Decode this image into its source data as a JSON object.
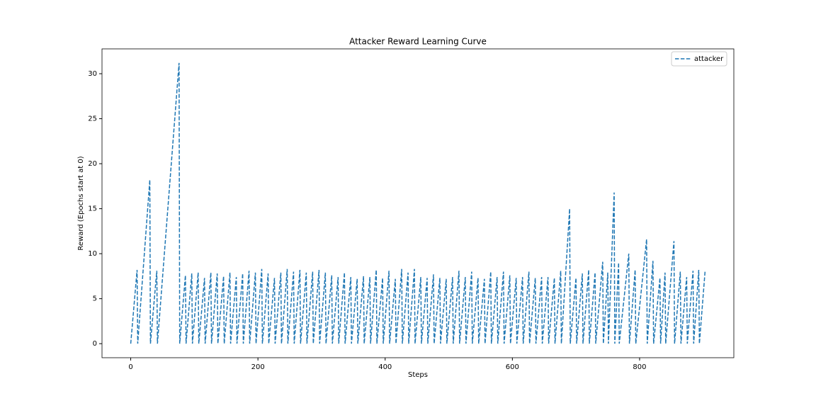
{
  "chart_data": {
    "type": "line",
    "title": "Attacker Reward Learning Curve",
    "xlabel": "Steps",
    "ylabel": "Reward (Epochs start at 0)",
    "xlim": [
      -45.15,
      948.15
    ],
    "xticks": [
      0,
      200,
      400,
      600,
      800
    ],
    "ylim": [
      -1.56,
      32.76
    ],
    "yticks": [
      0,
      5,
      10,
      15,
      20,
      25,
      30
    ],
    "legend": "upper right",
    "grid": false,
    "series": [
      {
        "name": "attacker",
        "color": "#1f77b4",
        "dashed": true,
        "x": [
          0,
          10,
          11,
          30,
          31,
          41,
          42,
          76,
          77,
          86,
          87,
          96,
          97,
          106,
          107,
          116,
          117,
          126,
          127,
          136,
          137,
          146,
          147,
          156,
          157,
          166,
          167,
          176,
          177,
          186,
          187,
          196,
          197,
          206,
          207,
          216,
          217,
          226,
          227,
          236,
          237,
          246,
          247,
          256,
          257,
          266,
          267,
          276,
          277,
          286,
          287,
          296,
          297,
          306,
          307,
          316,
          317,
          326,
          327,
          336,
          337,
          346,
          347,
          356,
          357,
          366,
          367,
          376,
          377,
          386,
          387,
          396,
          397,
          406,
          407,
          416,
          417,
          426,
          427,
          436,
          437,
          446,
          447,
          456,
          457,
          466,
          467,
          476,
          477,
          486,
          487,
          496,
          497,
          506,
          507,
          516,
          517,
          526,
          527,
          536,
          537,
          546,
          547,
          556,
          557,
          566,
          567,
          576,
          577,
          586,
          587,
          596,
          597,
          606,
          607,
          616,
          617,
          626,
          627,
          636,
          637,
          646,
          647,
          656,
          657,
          666,
          667,
          676,
          677,
          690,
          691,
          700,
          701,
          710,
          711,
          720,
          721,
          730,
          731,
          742,
          743,
          750,
          751,
          760,
          761,
          767,
          768,
          783,
          784,
          793,
          794,
          811,
          812,
          821,
          822,
          832,
          833,
          840,
          841,
          854,
          855,
          864,
          865,
          874,
          875,
          884,
          885,
          893,
          894,
          903
        ],
        "values": [
          0,
          8.2,
          0,
          18.2,
          0,
          8.1,
          0,
          31.2,
          0,
          7.6,
          0,
          7.8,
          0,
          7.9,
          0,
          7.3,
          0,
          7.9,
          0,
          7.8,
          0,
          7.5,
          0,
          7.9,
          0,
          7.4,
          0,
          7.8,
          0,
          8.1,
          0,
          7.9,
          0,
          8.3,
          0,
          7.8,
          0,
          7.3,
          0,
          7.9,
          0,
          8.3,
          0,
          8.0,
          0,
          8.2,
          0,
          7.9,
          0,
          8.0,
          0,
          8.2,
          0,
          7.9,
          0,
          7.6,
          0,
          7.4,
          0,
          7.9,
          0,
          7.4,
          0,
          7.2,
          0,
          7.5,
          0,
          7.4,
          0,
          8.2,
          0,
          7.3,
          0,
          8.1,
          0,
          7.2,
          0,
          8.3,
          0,
          7.9,
          0,
          8.3,
          0,
          7.4,
          0,
          7.3,
          0,
          7.7,
          0,
          7.3,
          0,
          7.2,
          0,
          7.4,
          0,
          8.1,
          0,
          7.4,
          0,
          8.0,
          0,
          7.3,
          0,
          7.2,
          0,
          8.0,
          0,
          7.4,
          0,
          8.0,
          0,
          7.6,
          0,
          7.3,
          0,
          7.4,
          0,
          8.0,
          0,
          7.3,
          0,
          7.4,
          0,
          7.4,
          0,
          7.3,
          0,
          8.1,
          0,
          15.0,
          0,
          7.3,
          0,
          7.8,
          0,
          8.2,
          0,
          7.9,
          0,
          9.1,
          0,
          7.9,
          0,
          16.8,
          0,
          9.0,
          0,
          10.0,
          0,
          8.2,
          0,
          11.6,
          0,
          9.2,
          0,
          7.3,
          0,
          7.9,
          0,
          11.4,
          0,
          8.0,
          0,
          7.4,
          0,
          8.1,
          0,
          8.2,
          0,
          8.1
        ]
      }
    ]
  }
}
